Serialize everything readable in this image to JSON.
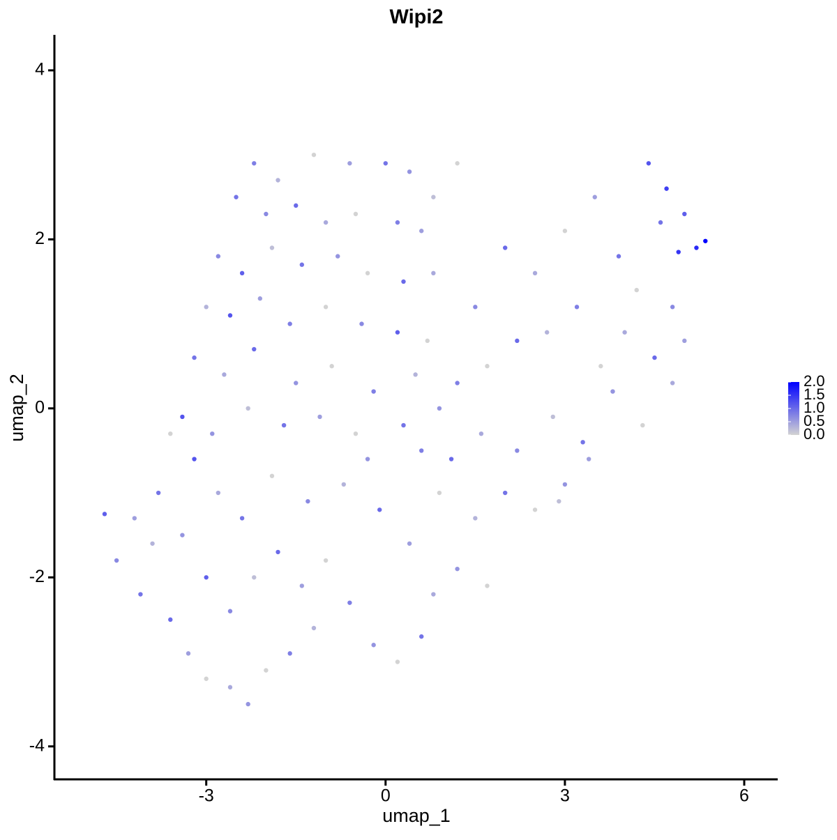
{
  "chart_data": {
    "type": "scatter",
    "title": "Wipi2",
    "x_label": "umap_1",
    "y_label": "umap_2",
    "xlim": [
      -5.54,
      6.56
    ],
    "ylim": [
      -4.39,
      4.42
    ],
    "xticks": [
      -3,
      0,
      3,
      6
    ],
    "yticks": [
      -4,
      -2,
      0,
      2,
      4
    ],
    "color_low": "#d3d3d3",
    "color_high": "#0000ff",
    "clim": [
      0,
      2
    ],
    "cticks": [
      {
        "value": 0,
        "label": "0.0"
      },
      0.5,
      {
        "value": 1,
        "label": "1.0"
      },
      1.5,
      {
        "value": 2,
        "label": "2.0"
      }
    ],
    "series": [
      {
        "x": [
          -2.2,
          -1.8,
          -1.2,
          -0.6,
          0,
          0.4,
          0.8,
          -2.5,
          -2.0,
          -1.5,
          -1.0,
          -0.5,
          0.2,
          0.6,
          1.2,
          -2.8,
          -2.4,
          -1.9,
          -1.4,
          -0.8,
          -0.3,
          0.3,
          0.8,
          -3.0,
          -2.6,
          -2.1,
          -1.6,
          -1.0,
          -0.4,
          0.2,
          0.7,
          -3.2,
          -2.7,
          -2.2,
          -1.5,
          -0.9,
          -0.2,
          0.5,
          -3.4,
          -2.9,
          -2.3,
          -1.7,
          -1.1,
          -0.5,
          0.3,
          0.9,
          1.5,
          2.0,
          2.5,
          3.0,
          3.5,
          3.9,
          4.4,
          4.7,
          5.0,
          5.2,
          5.35,
          4.9,
          4.6,
          4.2,
          4.8,
          5.0,
          4.5,
          4.0,
          3.6,
          3.2,
          2.7,
          2.2,
          1.7,
          1.2,
          4.8,
          4.3,
          3.8,
          3.3,
          2.8,
          2.2,
          1.6,
          1.1,
          3.0,
          2.5,
          2.0,
          1.5,
          3.4,
          2.9,
          -4.7,
          -4.5,
          -4.1,
          -3.9,
          -3.6,
          -3.3,
          -3.0,
          -2.6,
          -2.3,
          -2.0,
          -1.6,
          -1.2,
          -3.8,
          -3.4,
          -3.0,
          -2.6,
          -2.2,
          -1.8,
          -1.4,
          -1.0,
          -0.6,
          -0.2,
          0.2,
          0.6,
          0.8,
          -3.2,
          -2.8,
          -2.4,
          -1.9,
          -1.3,
          -0.7,
          -0.1,
          0.4,
          0.9,
          -0.3,
          0.6,
          1.2,
          1.7,
          -3.6,
          -4.2
        ],
        "y": [
          2.9,
          2.7,
          3.0,
          2.9,
          2.9,
          2.8,
          2.5,
          2.5,
          2.3,
          2.4,
          2.2,
          2.3,
          2.2,
          2.1,
          2.9,
          1.8,
          1.6,
          1.9,
          1.7,
          1.8,
          1.6,
          1.5,
          1.6,
          1.2,
          1.1,
          1.3,
          1.0,
          1.2,
          1.0,
          0.9,
          0.8,
          0.6,
          0.4,
          0.7,
          0.3,
          0.5,
          0.2,
          0.4,
          -0.1,
          -0.3,
          0.0,
          -0.2,
          -0.1,
          -0.3,
          -0.2,
          0.0,
          1.2,
          1.9,
          1.6,
          2.1,
          2.5,
          1.8,
          2.9,
          2.6,
          2.3,
          1.9,
          1.98,
          1.85,
          2.2,
          1.4,
          1.2,
          0.8,
          0.6,
          0.9,
          0.5,
          1.2,
          0.9,
          0.8,
          0.5,
          0.3,
          0.3,
          -0.2,
          0.2,
          -0.4,
          -0.1,
          -0.5,
          -0.3,
          -0.6,
          -0.9,
          -1.2,
          -1.0,
          -1.3,
          -0.6,
          -1.1,
          -1.25,
          -1.8,
          -2.2,
          -1.6,
          -2.5,
          -2.9,
          -3.2,
          -3.3,
          -3.5,
          -3.1,
          -2.9,
          -2.6,
          -1.0,
          -1.5,
          -2.0,
          -2.4,
          -2.0,
          -1.7,
          -2.1,
          -1.8,
          -2.3,
          -2.8,
          -3.0,
          -2.7,
          -2.2,
          -0.6,
          -1.0,
          -1.3,
          -0.8,
          -1.1,
          -0.9,
          -1.2,
          -1.6,
          -1.0,
          -0.6,
          -0.5,
          -1.9,
          -2.1,
          -0.3,
          -1.3
        ],
        "values": [
          0.8,
          0.3,
          0,
          0.5,
          0.9,
          0.6,
          0.2,
          0.9,
          0.7,
          1.0,
          0.4,
          0,
          0.8,
          0.5,
          0,
          0.7,
          1.1,
          0.2,
          0.9,
          0.6,
          0,
          1.0,
          0.4,
          0.3,
          1.2,
          0.5,
          0.8,
          0,
          0.7,
          1.1,
          0,
          0.9,
          0.4,
          1.0,
          0.6,
          0,
          0.8,
          0.3,
          1.2,
          0.6,
          0.2,
          0.9,
          0.5,
          0,
          0.9,
          0.6,
          0.7,
          1.0,
          0.4,
          0,
          0.5,
          0.9,
          1.2,
          1.4,
          1.1,
          1.6,
          2.0,
          1.5,
          0.9,
          0,
          0.7,
          0.5,
          1.0,
          0.4,
          0,
          0.8,
          0.3,
          1.0,
          0,
          0.8,
          0.4,
          0,
          0.6,
          0.9,
          0.2,
          0.7,
          0.4,
          1.0,
          0.6,
          0,
          0.9,
          0.3,
          0.5,
          0.2,
          1.1,
          0.7,
          0.9,
          0.3,
          1.0,
          0.5,
          0,
          0.4,
          0.6,
          0,
          0.8,
          0.3,
          0.9,
          0.6,
          1.1,
          0.7,
          0.2,
          1.0,
          0.5,
          0,
          0.8,
          0.6,
          0,
          0.9,
          0.4,
          1.2,
          0.4,
          0.9,
          0,
          0.7,
          0.3,
          1.0,
          0.5,
          0,
          0.6,
          0.8,
          0.6,
          0,
          0,
          0.5
        ]
      }
    ]
  }
}
